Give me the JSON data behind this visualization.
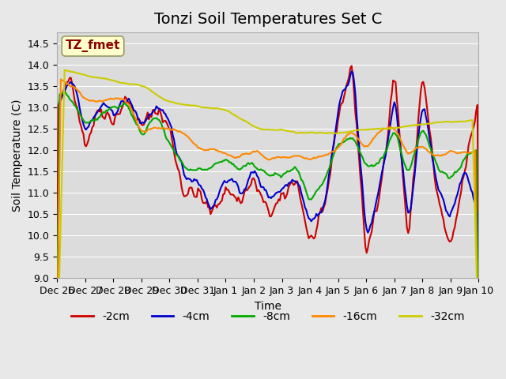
{
  "title": "Tonzi Soil Temperatures Set C",
  "xlabel": "Time",
  "ylabel": "Soil Temperature (C)",
  "ylim": [
    9.0,
    14.75
  ],
  "yticks": [
    9.0,
    9.5,
    10.0,
    10.5,
    11.0,
    11.5,
    12.0,
    12.5,
    13.0,
    13.5,
    14.0,
    14.5
  ],
  "bg_color": "#e8e8e8",
  "plot_bg_color": "#dcdcdc",
  "annotation_text": "TZ_fmet",
  "annotation_color": "#8b0000",
  "annotation_bg": "#ffffcc",
  "annotation_border": "#999966",
  "series": {
    "2cm": {
      "color": "#cc0000",
      "linewidth": 1.5
    },
    "4cm": {
      "color": "#0000cc",
      "linewidth": 1.5
    },
    "8cm": {
      "color": "#00aa00",
      "linewidth": 1.5
    },
    "16cm": {
      "color": "#ff8800",
      "linewidth": 1.5
    },
    "32cm": {
      "color": "#cccc00",
      "linewidth": 1.5
    }
  },
  "legend_labels": [
    "-2cm",
    "-4cm",
    "-8cm",
    "-16cm",
    "-32cm"
  ],
  "legend_colors": [
    "#cc0000",
    "#0000cc",
    "#00aa00",
    "#ff8800",
    "#cccc00"
  ],
  "xtick_labels": [
    "Dec 26",
    "Dec 27",
    "Dec 28",
    "Dec 29",
    "Dec 30",
    "Dec 31",
    "Jan 1",
    "Jan 2",
    "Jan 3",
    "Jan 4",
    "Jan 5",
    "Jan 6",
    "Jan 7",
    "Jan 8",
    "Jan 9",
    "Jan 10"
  ],
  "n_points": 336,
  "title_fontsize": 14,
  "axis_fontsize": 10,
  "tick_fontsize": 9
}
